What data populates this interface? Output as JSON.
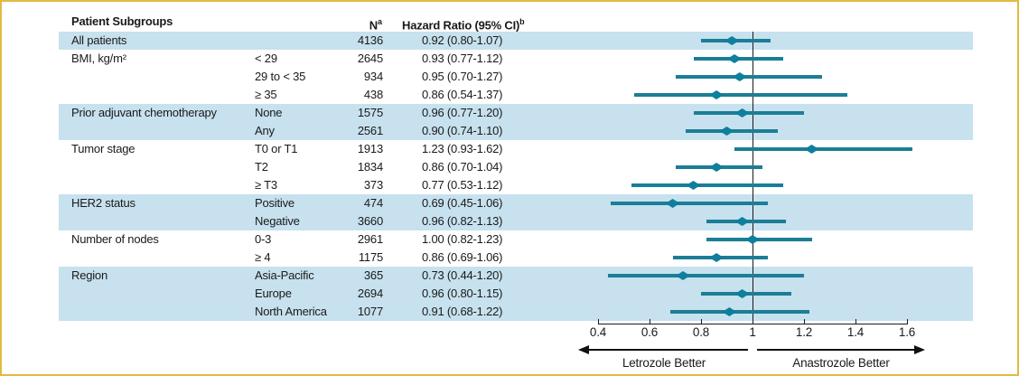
{
  "figure": {
    "header": {
      "subgroup_col": "Patient Subgroups",
      "n_col": "N",
      "n_col_sup": "a",
      "hr_col": "Hazard Ratio (95% CI)",
      "hr_col_sup": "b"
    },
    "colors": {
      "band_blue": "#c7e1ee",
      "ci_line_teal": "#1b7e96",
      "marker_teal": "#0e7f9c",
      "reference_line": "#1a1a1a",
      "border_gold": "#e3ba43",
      "text": "#1a1a1a"
    }
  },
  "chart_data": {
    "type": "forest",
    "title": "",
    "x_axis": {
      "xlim": [
        0.4,
        1.6
      ],
      "tick_values": [
        0.4,
        0.6,
        0.8,
        1,
        1.2,
        1.4,
        1.6
      ],
      "tick_labels": [
        "0.4",
        "0.6",
        "0.8",
        "1",
        "1.2",
        "1.4",
        "1.6"
      ],
      "reference_value": 1,
      "left_direction_label": "Letrozole Better",
      "right_direction_label": "Anastrozole Better"
    },
    "rows": [
      {
        "group": "All patients",
        "subgroup": "",
        "n": "4136",
        "hr_ci": "0.92 (0.80-1.07)",
        "est": 0.92,
        "lo": 0.8,
        "hi": 1.07,
        "shaded": true
      },
      {
        "group": "BMI, kg/m²",
        "subgroup": "< 29",
        "n": "2645",
        "hr_ci": "0.93 (0.77-1.12)",
        "est": 0.93,
        "lo": 0.77,
        "hi": 1.12,
        "shaded": false
      },
      {
        "group": "",
        "subgroup": "29 to < 35",
        "n": "934",
        "hr_ci": "0.95 (0.70-1.27)",
        "est": 0.95,
        "lo": 0.7,
        "hi": 1.27,
        "shaded": false
      },
      {
        "group": "",
        "subgroup": "≥ 35",
        "n": "438",
        "hr_ci": "0.86 (0.54-1.37)",
        "est": 0.86,
        "lo": 0.54,
        "hi": 1.37,
        "shaded": false
      },
      {
        "group": "Prior adjuvant chemotherapy",
        "subgroup": "None",
        "n": "1575",
        "hr_ci": "0.96 (0.77-1.20)",
        "est": 0.96,
        "lo": 0.77,
        "hi": 1.2,
        "shaded": true
      },
      {
        "group": "",
        "subgroup": "Any",
        "n": "2561",
        "hr_ci": "0.90 (0.74-1.10)",
        "est": 0.9,
        "lo": 0.74,
        "hi": 1.1,
        "shaded": true
      },
      {
        "group": "Tumor stage",
        "subgroup": "T0 or T1",
        "n": "1913",
        "hr_ci": "1.23 (0.93-1.62)",
        "est": 1.23,
        "lo": 0.93,
        "hi": 1.62,
        "shaded": false
      },
      {
        "group": "",
        "subgroup": "T2",
        "n": "1834",
        "hr_ci": "0.86 (0.70-1.04)",
        "est": 0.86,
        "lo": 0.7,
        "hi": 1.04,
        "shaded": false
      },
      {
        "group": "",
        "subgroup": "≥ T3",
        "n": "373",
        "hr_ci": "0.77 (0.53-1.12)",
        "est": 0.77,
        "lo": 0.53,
        "hi": 1.12,
        "shaded": false
      },
      {
        "group": "HER2 status",
        "subgroup": "Positive",
        "n": "474",
        "hr_ci": "0.69 (0.45-1.06)",
        "est": 0.69,
        "lo": 0.45,
        "hi": 1.06,
        "shaded": true
      },
      {
        "group": "",
        "subgroup": "Negative",
        "n": "3660",
        "hr_ci": "0.96 (0.82-1.13)",
        "est": 0.96,
        "lo": 0.82,
        "hi": 1.13,
        "shaded": true
      },
      {
        "group": "Number of nodes",
        "subgroup": "0-3",
        "n": "2961",
        "hr_ci": "1.00 (0.82-1.23)",
        "est": 1.0,
        "lo": 0.82,
        "hi": 1.23,
        "shaded": false
      },
      {
        "group": "",
        "subgroup": "≥ 4",
        "n": "1175",
        "hr_ci": "0.86 (0.69-1.06)",
        "est": 0.86,
        "lo": 0.69,
        "hi": 1.06,
        "shaded": false
      },
      {
        "group": "Region",
        "subgroup": "Asia-Pacific",
        "n": "365",
        "hr_ci": "0.73 (0.44-1.20)",
        "est": 0.73,
        "lo": 0.44,
        "hi": 1.2,
        "shaded": true
      },
      {
        "group": "",
        "subgroup": "Europe",
        "n": "2694",
        "hr_ci": "0.96 (0.80-1.15)",
        "est": 0.96,
        "lo": 0.8,
        "hi": 1.15,
        "shaded": true
      },
      {
        "group": "",
        "subgroup": "North America",
        "n": "1077",
        "hr_ci": "0.91 (0.68-1.22)",
        "est": 0.91,
        "lo": 0.68,
        "hi": 1.22,
        "shaded": true
      }
    ]
  }
}
